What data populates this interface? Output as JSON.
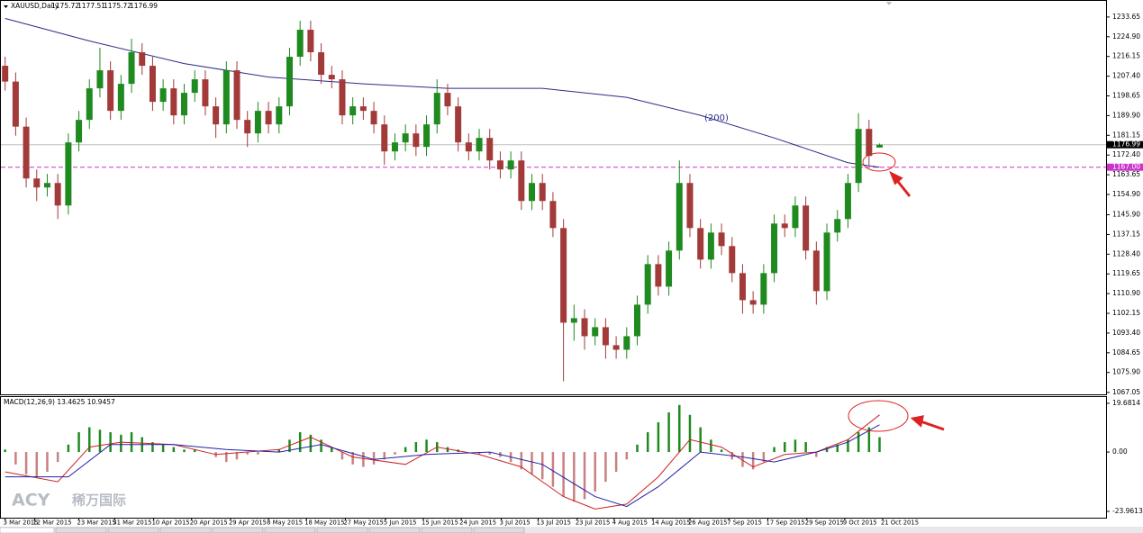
{
  "chart_data": [
    {
      "type": "candlestick",
      "title": "XAUUSD,Daily",
      "header_values": [
        1175.72,
        1177.51,
        1175.72,
        1176.99
      ],
      "up_color": "#1f8a1f",
      "down_color": "#a33a3a",
      "open": [
        1212,
        1205,
        1185,
        1162,
        1158,
        1160,
        1150,
        1178,
        1188,
        1202,
        1210,
        1192,
        1204,
        1218,
        1212,
        1196,
        1202,
        1190,
        1200,
        1206,
        1194,
        1186,
        1210,
        1188,
        1182,
        1192,
        1186,
        1194,
        1216,
        1228,
        1218,
        1208,
        1206,
        1190,
        1194,
        1192,
        1186,
        1174,
        1178,
        1182,
        1176,
        1186,
        1200,
        1194,
        1178,
        1174,
        1180,
        1170,
        1166,
        1170,
        1152,
        1160,
        1152,
        1140,
        1098,
        1100,
        1092,
        1096,
        1088,
        1086,
        1092,
        1106,
        1124,
        1114,
        1130,
        1160,
        1140,
        1126,
        1138,
        1132,
        1120,
        1108,
        1106,
        1120,
        1142,
        1140,
        1150,
        1130,
        1112,
        1138,
        1144,
        1160,
        1184,
        1175.72
      ],
      "high": [
        1216,
        1209,
        1189,
        1166,
        1164,
        1164,
        1182,
        1192,
        1206,
        1220,
        1214,
        1208,
        1224,
        1222,
        1216,
        1206,
        1206,
        1204,
        1210,
        1210,
        1198,
        1214,
        1214,
        1192,
        1196,
        1196,
        1198,
        1220,
        1232,
        1232,
        1222,
        1212,
        1210,
        1198,
        1198,
        1196,
        1190,
        1182,
        1186,
        1186,
        1190,
        1206,
        1204,
        1198,
        1182,
        1184,
        1184,
        1174,
        1174,
        1174,
        1164,
        1164,
        1156,
        1144,
        1106,
        1104,
        1100,
        1100,
        1092,
        1096,
        1110,
        1128,
        1128,
        1134,
        1170,
        1164,
        1144,
        1142,
        1142,
        1136,
        1124,
        1112,
        1124,
        1146,
        1146,
        1154,
        1154,
        1134,
        1142,
        1148,
        1164,
        1191,
        1188,
        1177.51
      ],
      "low": [
        1201,
        1181,
        1158,
        1152,
        1154,
        1144,
        1146,
        1174,
        1184,
        1198,
        1188,
        1188,
        1200,
        1208,
        1192,
        1192,
        1186,
        1186,
        1196,
        1190,
        1180,
        1182,
        1184,
        1176,
        1178,
        1182,
        1182,
        1190,
        1212,
        1214,
        1204,
        1202,
        1186,
        1186,
        1188,
        1182,
        1168,
        1170,
        1174,
        1172,
        1172,
        1182,
        1190,
        1174,
        1170,
        1170,
        1166,
        1162,
        1162,
        1148,
        1148,
        1148,
        1136,
        1072,
        1090,
        1086,
        1088,
        1082,
        1082,
        1082,
        1088,
        1102,
        1110,
        1110,
        1126,
        1136,
        1122,
        1122,
        1128,
        1116,
        1102,
        1102,
        1102,
        1116,
        1136,
        1136,
        1126,
        1106,
        1108,
        1134,
        1140,
        1156,
        1168,
        1175.72
      ],
      "close": [
        1205,
        1185,
        1162,
        1158,
        1160,
        1150,
        1178,
        1188,
        1202,
        1210,
        1192,
        1204,
        1218,
        1212,
        1196,
        1202,
        1190,
        1200,
        1206,
        1194,
        1186,
        1210,
        1188,
        1182,
        1192,
        1186,
        1194,
        1216,
        1228,
        1218,
        1208,
        1206,
        1190,
        1194,
        1192,
        1186,
        1174,
        1178,
        1182,
        1176,
        1186,
        1200,
        1194,
        1178,
        1174,
        1180,
        1170,
        1166,
        1170,
        1152,
        1160,
        1152,
        1140,
        1098,
        1100,
        1092,
        1096,
        1088,
        1086,
        1092,
        1106,
        1124,
        1114,
        1130,
        1160,
        1140,
        1126,
        1138,
        1132,
        1120,
        1108,
        1106,
        1120,
        1142,
        1140,
        1150,
        1130,
        1112,
        1138,
        1144,
        1160,
        1184,
        1172,
        1176.99
      ],
      "ma": {
        "color": "#2b2b8a",
        "x": [
          0,
          8,
          17,
          25,
          34,
          42,
          51,
          59,
          66,
          73,
          80,
          83
        ],
        "values": [
          1233,
          1223,
          1213,
          1207,
          1204,
          1202,
          1202,
          1198,
          1190,
          1180,
          1169,
          1167
        ]
      },
      "annotation": "(200)",
      "current_price": 1176.99,
      "level": {
        "value": 1167,
        "label": "1167.00",
        "color": "#cc33cc"
      },
      "xlim": [
        -0.4,
        104.5
      ],
      "ylim": [
        1066.6,
        1239.2
      ],
      "yticks": [
        1233.65,
        {
          "value": 1224.9,
          "label": "1224.90"
        },
        1216.15,
        {
          "value": 1207.4,
          "label": "1207.40"
        },
        1198.65,
        {
          "value": 1189.9,
          "label": "1189.90"
        },
        1181.15,
        {
          "value": 1172.4,
          "label": "1172.40"
        },
        1163.65,
        {
          "value": 1154.9,
          "label": "1154.90"
        },
        {
          "value": 1145.9,
          "label": "1145.90"
        },
        1137.15,
        {
          "value": 1128.4,
          "label": "1128.40"
        },
        1119.65,
        {
          "value": 1110.9,
          "label": "1110.90"
        },
        1102.15,
        {
          "value": 1093.4,
          "label": "1093.40"
        },
        1084.65,
        {
          "value": 1075.9,
          "label": "1075.90"
        },
        1067.05
      ]
    },
    {
      "type": "macd",
      "title": "MACD(12,26,9) 13.4625 10.9457",
      "histogram": [
        1,
        -5,
        -9,
        -10,
        -8,
        -4,
        3,
        8,
        10,
        9,
        8,
        7,
        8,
        6,
        4,
        3,
        2,
        1,
        1,
        0,
        -2,
        -4,
        -3,
        -1,
        -1,
        0,
        1,
        5,
        8,
        7,
        5,
        2,
        -3,
        -5,
        -6,
        -5,
        -3,
        -1,
        2,
        4,
        5,
        4,
        2,
        1,
        0,
        -1,
        -1,
        -2,
        -4,
        -7,
        -9,
        -11,
        -14,
        -18,
        -20,
        -19,
        -16,
        -12,
        -8,
        -3,
        3,
        8,
        12,
        16,
        19,
        15,
        10,
        5,
        1,
        -3,
        -6,
        -7,
        -4,
        2,
        4,
        5,
        4,
        -2,
        2,
        3,
        5,
        8,
        10,
        6
      ],
      "up_color": "#1f8a1f",
      "down_color": "#c98080",
      "series": [
        {
          "color": "#cc2222",
          "x": [
            0,
            5,
            8,
            11,
            16,
            20,
            26,
            29,
            33,
            38,
            41,
            45,
            49,
            53,
            56,
            59,
            62,
            65,
            68,
            71,
            74,
            77,
            80,
            83
          ],
          "values": [
            -8,
            -12,
            2,
            4,
            3,
            -1,
            1,
            6,
            -2,
            -5,
            2,
            -1,
            -6,
            -18,
            -23,
            -21,
            -10,
            5,
            2,
            -6,
            -1,
            0,
            5,
            15
          ]
        },
        {
          "color": "#2222aa",
          "x": [
            0,
            6,
            10,
            16,
            21,
            26,
            30,
            35,
            40,
            46,
            51,
            56,
            59,
            62,
            66,
            70,
            73,
            77,
            80,
            83
          ],
          "values": [
            -10,
            -10,
            3,
            3,
            1,
            0,
            3,
            -3,
            -1,
            0,
            -5,
            -18,
            -22,
            -14,
            0,
            -2,
            -4,
            0,
            4,
            11
          ]
        }
      ],
      "xlim": [
        -0.4,
        104.5
      ],
      "ylim": [
        -26.5,
        22.2
      ],
      "yticks": [
        19.6814,
        {
          "value": 0,
          "label": "0.00"
        },
        -23.9613
      ],
      "xticks": [
        {
          "value": 0,
          "label": "3 Mar 2015"
        },
        {
          "value": 2.8,
          "label": "12 Mar 2015"
        },
        {
          "value": 7,
          "label": "23 Mar 2015"
        },
        {
          "value": 10.4,
          "label": "31 Mar 2015"
        },
        {
          "value": 14.1,
          "label": "10 Apr 2015"
        },
        {
          "value": 17.7,
          "label": "20 Apr 2015"
        },
        {
          "value": 21.4,
          "label": "29 Apr 2015"
        },
        {
          "value": 25,
          "label": "8 May 2015"
        },
        {
          "value": 28.6,
          "label": "18 May 2015"
        },
        {
          "value": 32.3,
          "label": "27 May 2015"
        },
        {
          "value": 36.1,
          "label": "5 Jun 2015"
        },
        {
          "value": 39.7,
          "label": "15 Jun 2015"
        },
        {
          "value": 43.3,
          "label": "24 Jun 2015"
        },
        {
          "value": 47.1,
          "label": "3 Jul 2015"
        },
        {
          "value": 50.6,
          "label": "13 Jul 2015"
        },
        {
          "value": 54.3,
          "label": "23 Jul 2015"
        },
        {
          "value": 57.8,
          "label": "4 Aug 2015"
        },
        {
          "value": 61.5,
          "label": "14 Aug 2015"
        },
        {
          "value": 65,
          "label": "26 Aug 2015"
        },
        {
          "value": 68.7,
          "label": "7 Sep 2015"
        },
        {
          "value": 72.4,
          "label": "17 Sep 2015"
        },
        {
          "value": 76.1,
          "label": "29 Sep 2015"
        },
        {
          "value": 79.7,
          "label": "9 Oct 2015"
        },
        {
          "value": 83.3,
          "label": "21 Oct 2015"
        }
      ],
      "watermark": [
        "ACY",
        "稀万国际"
      ]
    }
  ]
}
